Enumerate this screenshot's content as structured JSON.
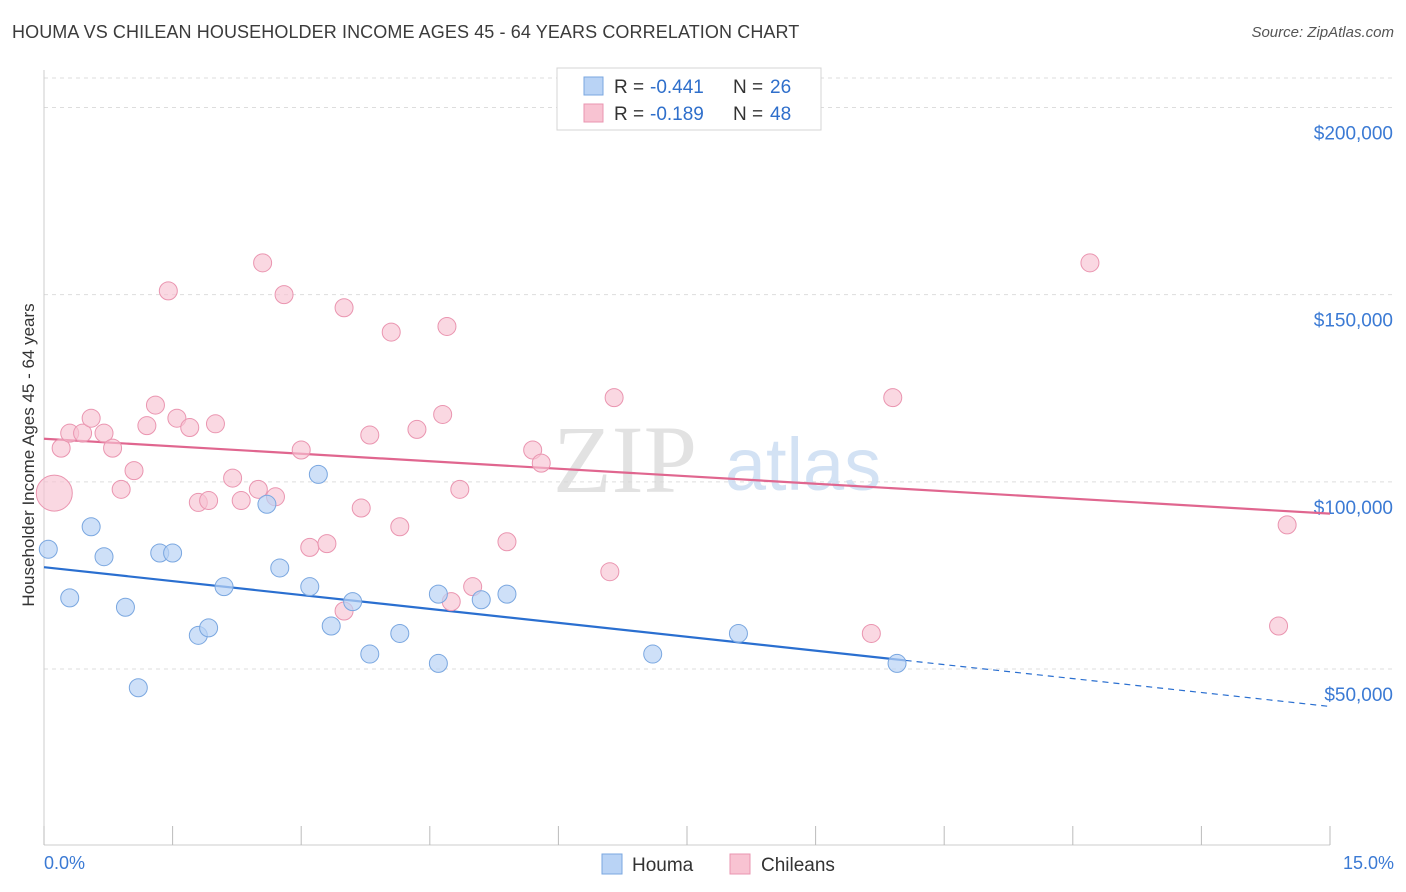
{
  "title": "HOUMA VS CHILEAN HOUSEHOLDER INCOME AGES 45 - 64 YEARS CORRELATION CHART",
  "source": "Source: ZipAtlas.com",
  "watermark": {
    "zip": "ZIP",
    "atlas": "atlas"
  },
  "colors": {
    "houma_fill": "#b9d3f5",
    "houma_stroke": "#7aa7e0",
    "houma_line": "#2a6fd0",
    "chileans_fill": "#f8c3d2",
    "chileans_stroke": "#ea95b0",
    "chileans_line": "#e0668f",
    "axis_text": "#3b7ad4",
    "grid": "#dddddd"
  },
  "legend": {
    "rows": [
      {
        "r_label": "R = ",
        "r_value": "-0.441",
        "n_label": "N = ",
        "n_value": "26"
      },
      {
        "r_label": "R = ",
        "r_value": "-0.189",
        "n_label": "N = ",
        "n_value": "48"
      }
    ]
  },
  "bottom_legend": [
    "Houma",
    "Chileans"
  ],
  "chart_data": {
    "type": "scatter",
    "ylabel": "Householder Income Ages 45 - 64 years",
    "xlim": [
      0,
      15
    ],
    "ylim": [
      3000,
      210000
    ],
    "x_tick_labels": [
      "0.0%",
      "15.0%"
    ],
    "y_ticks": [
      50000,
      100000,
      150000,
      200000
    ],
    "y_tick_labels": [
      "$50,000",
      "$100,000",
      "$150,000",
      "$200,000"
    ],
    "grid": "horizontal dashed",
    "series": [
      {
        "name": "Houma",
        "R": -0.441,
        "N": 26,
        "points": [
          [
            0.05,
            82000
          ],
          [
            0.3,
            69000
          ],
          [
            0.55,
            88000
          ],
          [
            0.7,
            80000
          ],
          [
            0.95,
            66500
          ],
          [
            1.1,
            45000
          ],
          [
            1.35,
            81000
          ],
          [
            1.5,
            81000
          ],
          [
            1.8,
            59000
          ],
          [
            1.92,
            61000
          ],
          [
            2.1,
            72000
          ],
          [
            2.6,
            94000
          ],
          [
            2.75,
            77000
          ],
          [
            3.1,
            72000
          ],
          [
            3.2,
            102000
          ],
          [
            3.35,
            61500
          ],
          [
            3.6,
            68000
          ],
          [
            3.8,
            54000
          ],
          [
            4.15,
            59500
          ],
          [
            4.6,
            70000
          ],
          [
            4.6,
            51500
          ],
          [
            5.1,
            68500
          ],
          [
            5.4,
            70000
          ],
          [
            7.1,
            54000
          ],
          [
            8.1,
            59500
          ],
          [
            9.95,
            51500
          ]
        ],
        "trend": {
          "x0": 0,
          "y0": 77200,
          "x1": 10.05,
          "y1": 52300,
          "dash_to_x": 15,
          "dash_to_y": 40000
        }
      },
      {
        "name": "Chileans",
        "R": -0.189,
        "N": 48,
        "points": [
          [
            0.12,
            97000
          ],
          [
            0.2,
            109000
          ],
          [
            0.3,
            113000
          ],
          [
            0.45,
            113000
          ],
          [
            0.55,
            117000
          ],
          [
            0.7,
            113000
          ],
          [
            0.8,
            109000
          ],
          [
            0.9,
            98000
          ],
          [
            1.05,
            103000
          ],
          [
            1.2,
            115000
          ],
          [
            1.3,
            120500
          ],
          [
            1.45,
            151000
          ],
          [
            1.55,
            117000
          ],
          [
            1.7,
            114500
          ],
          [
            1.8,
            94500
          ],
          [
            1.92,
            95000
          ],
          [
            2.0,
            115500
          ],
          [
            2.2,
            101000
          ],
          [
            2.3,
            95000
          ],
          [
            2.5,
            98000
          ],
          [
            2.55,
            158500
          ],
          [
            2.7,
            96000
          ],
          [
            2.8,
            150000
          ],
          [
            3.0,
            108500
          ],
          [
            3.1,
            82500
          ],
          [
            3.3,
            83500
          ],
          [
            3.5,
            65500
          ],
          [
            3.5,
            146500
          ],
          [
            3.7,
            93000
          ],
          [
            3.8,
            112500
          ],
          [
            4.05,
            140000
          ],
          [
            4.15,
            88000
          ],
          [
            4.35,
            114000
          ],
          [
            4.65,
            118000
          ],
          [
            4.75,
            68000
          ],
          [
            4.7,
            141500
          ],
          [
            4.85,
            98000
          ],
          [
            5.0,
            72000
          ],
          [
            5.4,
            84000
          ],
          [
            5.7,
            108500
          ],
          [
            5.8,
            105000
          ],
          [
            6.6,
            76000
          ],
          [
            6.65,
            122500
          ],
          [
            9.65,
            59500
          ],
          [
            9.9,
            122500
          ],
          [
            12.2,
            158500
          ],
          [
            14.4,
            61500
          ],
          [
            14.5,
            88500
          ]
        ],
        "trend": {
          "x0": 0,
          "y0": 111500,
          "x1": 15,
          "y1": 91500
        }
      }
    ]
  }
}
